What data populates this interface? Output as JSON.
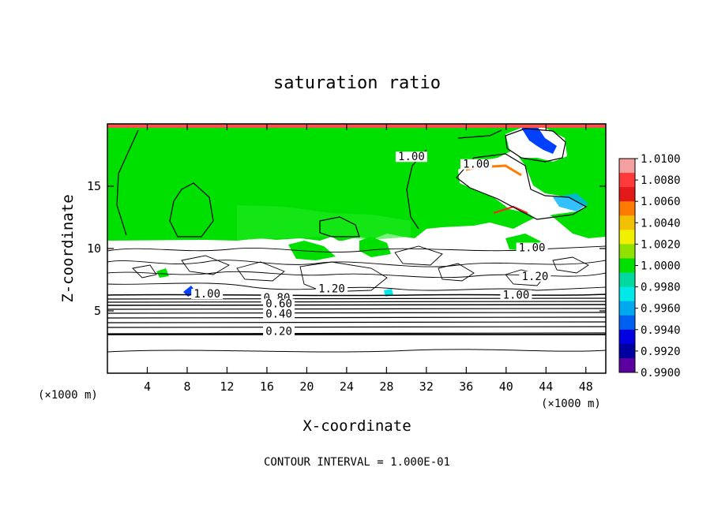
{
  "chart_data": {
    "type": "heatmap",
    "title": "saturation ratio",
    "xlabel": "X-coordinate",
    "ylabel": "Z-coordinate",
    "x_unit_left": "(×1000 m)",
    "x_unit_right": "(×1000 m)",
    "footer": "CONTOUR INTERVAL = 1.000E-01",
    "xlim": [
      0,
      50
    ],
    "ylim": [
      0,
      20
    ],
    "x_ticks": [
      4,
      8,
      12,
      16,
      20,
      24,
      28,
      32,
      36,
      40,
      44,
      48
    ],
    "y_ticks": [
      5,
      10,
      15
    ],
    "colorbar": {
      "labels": [
        "1.0100",
        "1.0080",
        "1.0060",
        "1.0040",
        "1.0020",
        "1.0000",
        "0.9980",
        "0.9960",
        "0.9940",
        "0.9920",
        "0.9900"
      ],
      "colors": [
        "#f5a0a0",
        "#ff3a3a",
        "#e41a1a",
        "#ff7a00",
        "#f2c000",
        "#f0f000",
        "#90e000",
        "#00e000",
        "#00d8a0",
        "#00e8e8",
        "#00a8f0",
        "#0060f0",
        "#0000e0",
        "#0000a0",
        "#5a00a0"
      ]
    },
    "contour_labels": [
      {
        "text": "1.00",
        "x": 30.5,
        "z": 17.2
      },
      {
        "text": "1.00",
        "x": 37.0,
        "z": 16.6
      },
      {
        "text": "1.00",
        "x": 42.6,
        "z": 9.9
      },
      {
        "text": "1.20",
        "x": 42.9,
        "z": 7.6
      },
      {
        "text": "1.00",
        "x": 41.0,
        "z": 6.1
      },
      {
        "text": "1.20",
        "x": 22.5,
        "z": 6.6
      },
      {
        "text": "1.00",
        "x": 10.0,
        "z": 6.2
      },
      {
        "text": "0.80",
        "x": 17.0,
        "z": 5.9
      },
      {
        "text": "0.60",
        "x": 17.2,
        "z": 5.4
      },
      {
        "text": "0.40",
        "x": 17.2,
        "z": 4.6
      },
      {
        "text": "0.20",
        "x": 17.2,
        "z": 3.2
      }
    ]
  }
}
